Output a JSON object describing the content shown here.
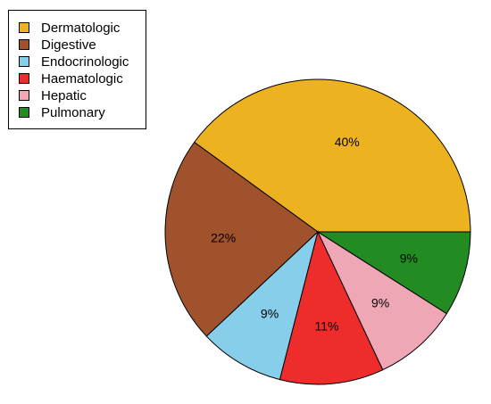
{
  "chart_data": {
    "type": "pie",
    "categories": [
      "Dermatologic",
      "Digestive",
      "Endocrinologic",
      "Haematologic",
      "Hepatic",
      "Pulmonary"
    ],
    "values": [
      40,
      22,
      9,
      11,
      9,
      9
    ],
    "labels": [
      "40%",
      "22%",
      "9%",
      "11%",
      "9%",
      "9%"
    ],
    "colors": [
      "#EDB220",
      "#A0522D",
      "#87CEEB",
      "#EE2C2C",
      "#EFA7B6",
      "#228B22"
    ],
    "legend": {
      "position": "top-left",
      "items": [
        {
          "label": "Dermatologic",
          "color": "#EDB220"
        },
        {
          "label": "Digestive",
          "color": "#A0522D"
        },
        {
          "label": "Endocrinologic",
          "color": "#87CEEB"
        },
        {
          "label": "Haematologic",
          "color": "#EE2C2C"
        },
        {
          "label": "Hepatic",
          "color": "#EFA7B6"
        },
        {
          "label": "Pulmonary",
          "color": "#228B22"
        }
      ]
    },
    "start_angle_deg": 0,
    "direction": "counterclockwise"
  }
}
